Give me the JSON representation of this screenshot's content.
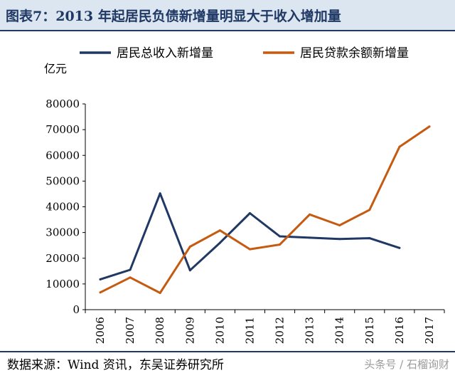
{
  "header": {
    "title": "图表7：2013 年起居民负债新增量明显大于收入增加量"
  },
  "footer": {
    "source": "数据来源：Wind 资讯，东吴证券研究所",
    "watermark": "头条号 / 石榴询财"
  },
  "chart_data": {
    "type": "line",
    "title": "图表7：2013 年起居民负债新增量明显大于收入增加量",
    "ylabel": "亿元",
    "xlabel": "",
    "ylim": [
      0,
      80000
    ],
    "yticks": [
      0,
      10000,
      20000,
      30000,
      40000,
      50000,
      60000,
      70000,
      80000
    ],
    "categories": [
      "2006",
      "2007",
      "2008",
      "2009",
      "2010",
      "2011",
      "2012",
      "2013",
      "2014",
      "2015",
      "2016",
      "2017"
    ],
    "legend_position": "top",
    "grid": false,
    "series": [
      {
        "name": "居民总收入新增量",
        "color": "#203864",
        "values": [
          11800,
          15500,
          45200,
          15300,
          26000,
          37500,
          28500,
          28000,
          27500,
          27800,
          24000,
          null
        ]
      },
      {
        "name": "居民贷款余额新增量",
        "color": "#c55a11",
        "values": [
          6700,
          12500,
          6500,
          24500,
          30800,
          23500,
          25300,
          37000,
          32800,
          38800,
          63300,
          71200
        ]
      }
    ]
  }
}
